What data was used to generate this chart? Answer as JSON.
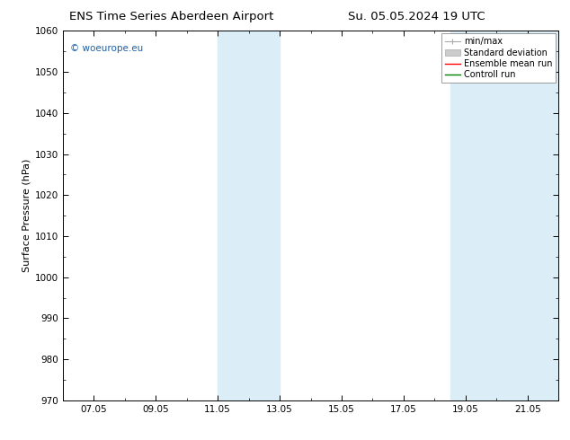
{
  "title_left": "ENS Time Series Aberdeen Airport",
  "title_right": "Su. 05.05.2024 19 UTC",
  "ylabel": "Surface Pressure (hPa)",
  "ylim": [
    970,
    1060
  ],
  "yticks": [
    970,
    980,
    990,
    1000,
    1010,
    1020,
    1030,
    1040,
    1050,
    1060
  ],
  "xlim": [
    6.0,
    22.0
  ],
  "xtick_labels": [
    "07.05",
    "09.05",
    "11.05",
    "13.05",
    "15.05",
    "17.05",
    "19.05",
    "21.05"
  ],
  "xtick_positions": [
    7,
    9,
    11,
    13,
    15,
    17,
    19,
    21
  ],
  "shaded_bands": [
    {
      "x_start": 11.0,
      "x_end": 13.0
    },
    {
      "x_start": 18.5,
      "x_end": 22.0
    }
  ],
  "band_color": "#dbeef8",
  "watermark_text": "© woeurope.eu",
  "watermark_color": "#1a5fa8",
  "legend_items": [
    {
      "label": "min/max",
      "color": "#aaaaaa",
      "style": "errorbar"
    },
    {
      "label": "Standard deviation",
      "color": "#cccccc",
      "style": "band"
    },
    {
      "label": "Ensemble mean run",
      "color": "#ff0000",
      "style": "line"
    },
    {
      "label": "Controll run",
      "color": "#008000",
      "style": "line"
    }
  ],
  "bg_color": "#ffffff",
  "plot_bg_color": "#ffffff",
  "title_fontsize": 9.5,
  "axis_label_fontsize": 8,
  "tick_fontsize": 7.5,
  "legend_fontsize": 7.0,
  "watermark_fontsize": 7.5
}
